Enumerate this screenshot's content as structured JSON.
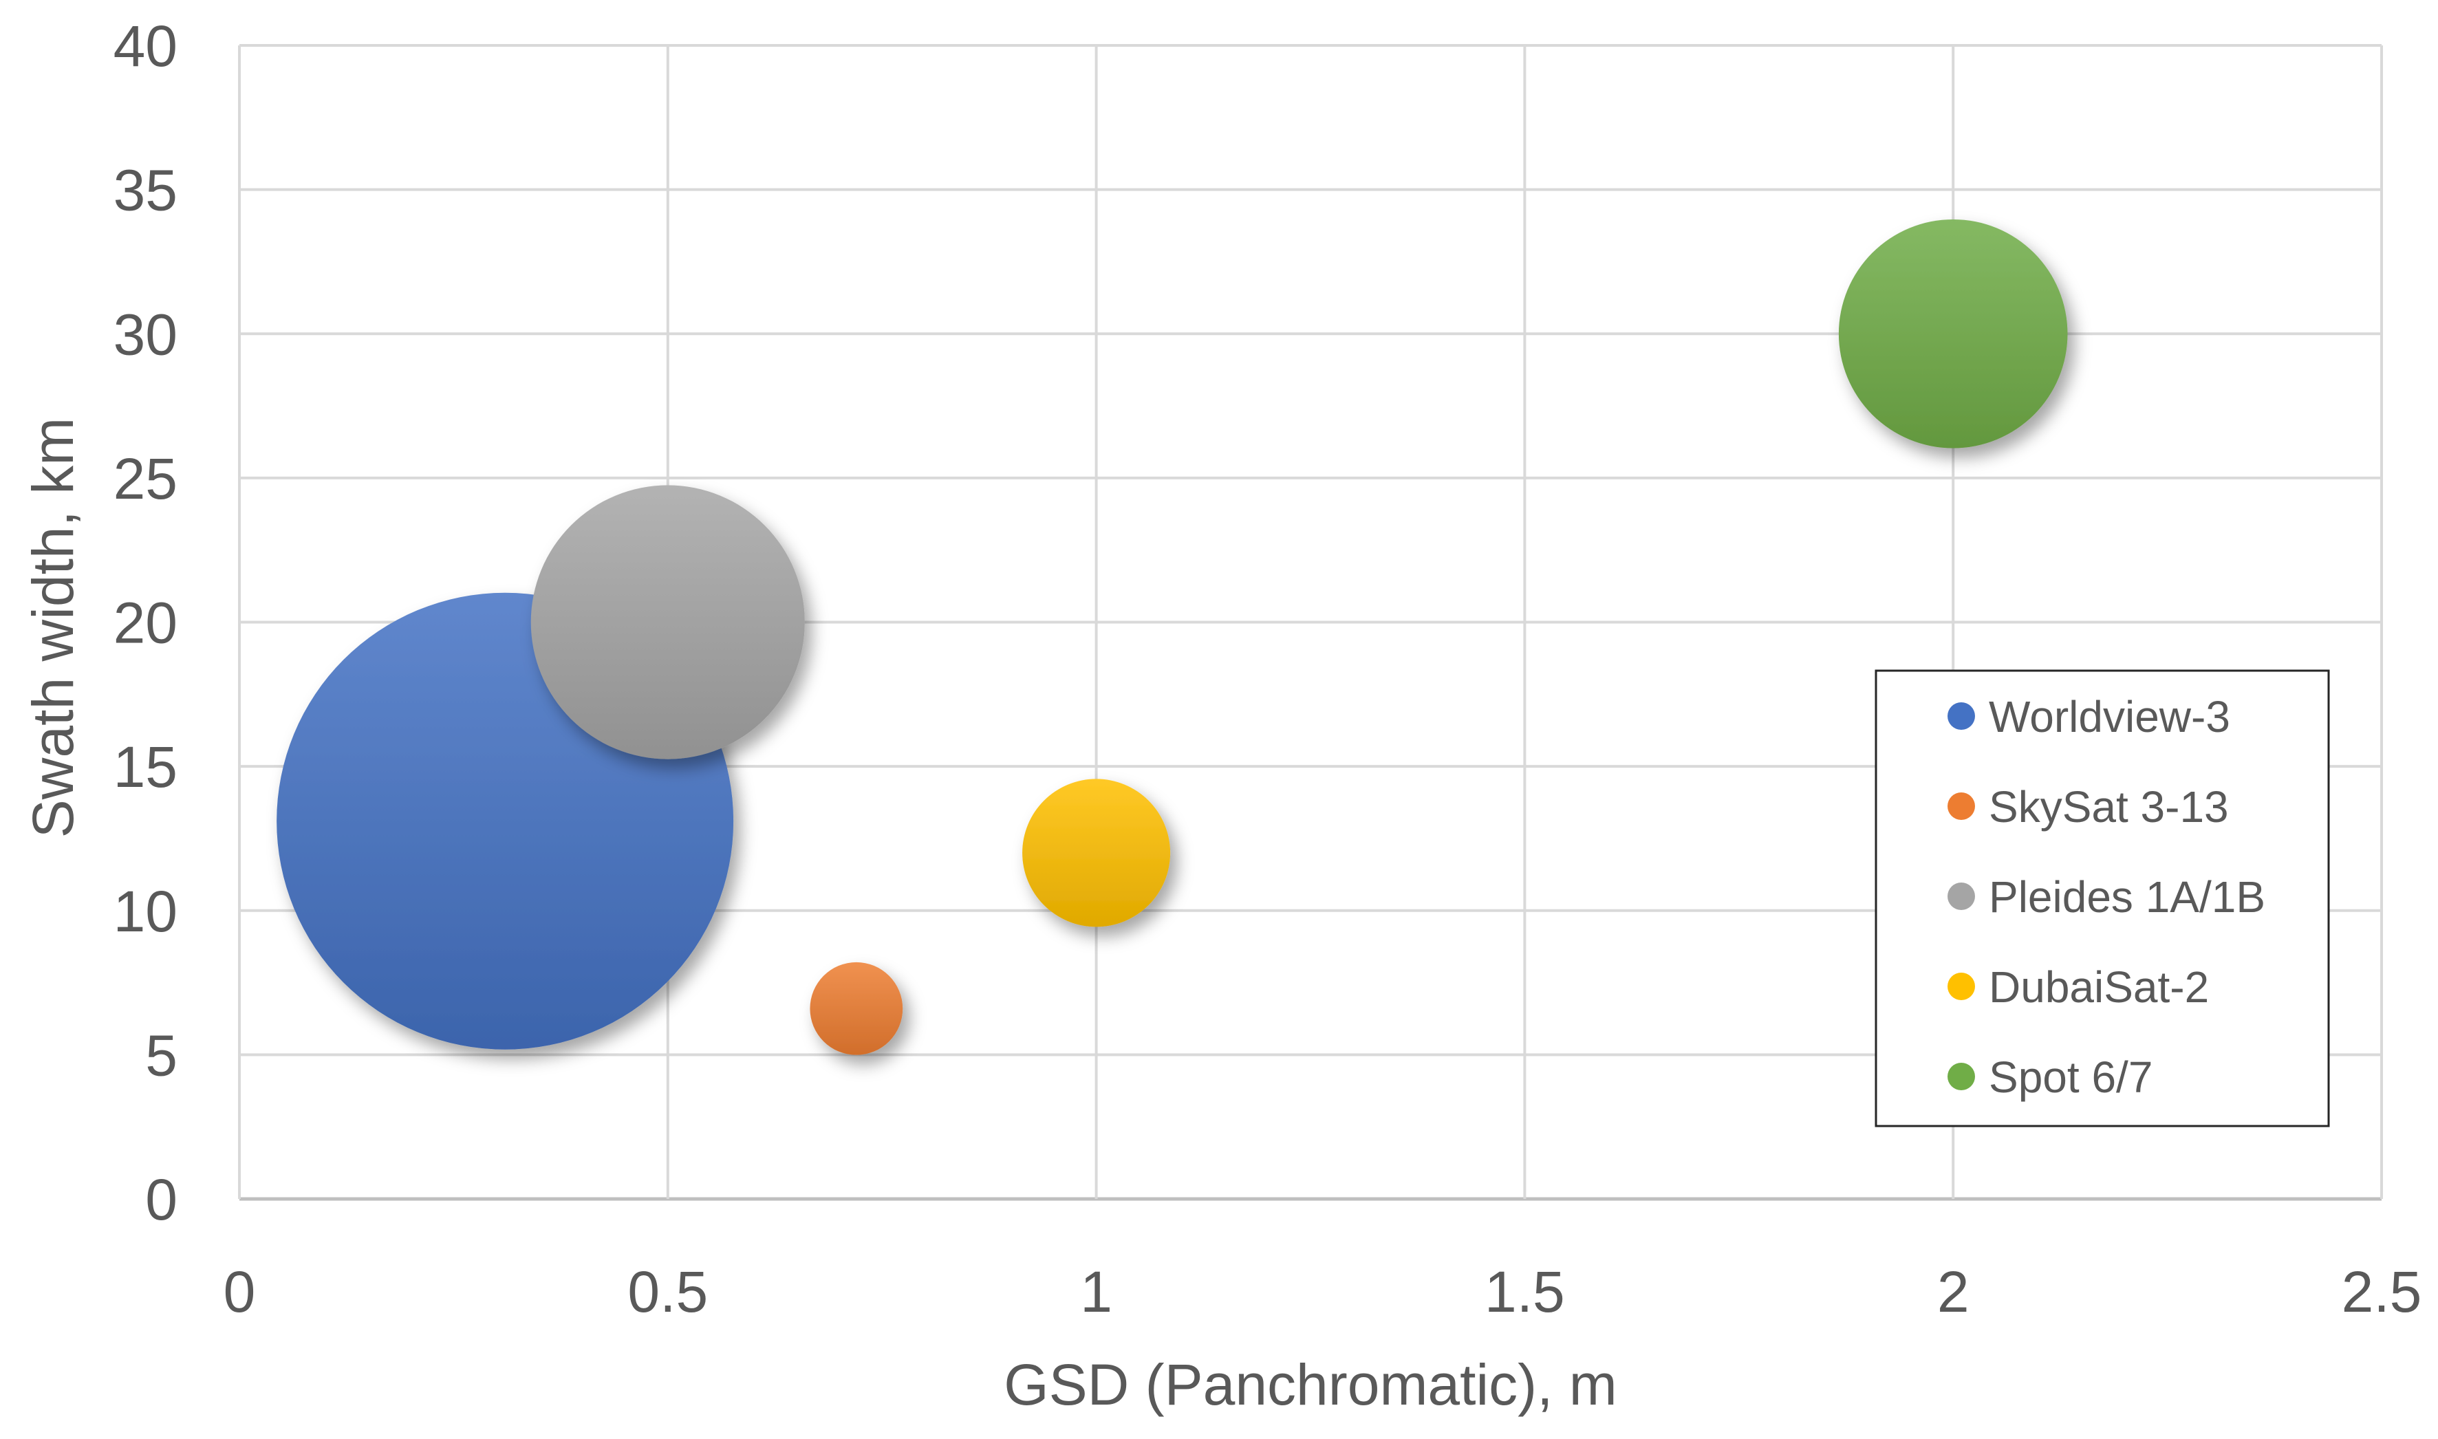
{
  "chart_data": {
    "type": "bubble",
    "title": "",
    "xlabel": "GSD (Panchromatic), m",
    "ylabel": "Swath width, km",
    "xlim": [
      0,
      2.5
    ],
    "ylim": [
      0,
      40
    ],
    "xticks": [
      "0",
      "0.5",
      "1",
      "1.5",
      "2",
      "2.5"
    ],
    "yticks": [
      "0",
      "5",
      "10",
      "15",
      "20",
      "25",
      "30",
      "35",
      "40"
    ],
    "xtick_values": [
      0,
      0.5,
      1,
      1.5,
      2,
      2.5
    ],
    "ytick_values": [
      0,
      5,
      10,
      15,
      20,
      25,
      30,
      35,
      40
    ],
    "grid": true,
    "legend_position": "right",
    "series": [
      {
        "name": "Worldview-3",
        "x": 0.31,
        "y": 13.1,
        "size": 26.7,
        "color": "#4472C4"
      },
      {
        "name": "SkySat 3-13",
        "x": 0.72,
        "y": 6.6,
        "size": 1.1,
        "color": "#ED7D31"
      },
      {
        "name": "Pleides 1A/1B",
        "x": 0.5,
        "y": 20,
        "size": 9.6,
        "color": "#A5A5A5"
      },
      {
        "name": "DubaiSat-2",
        "x": 1.0,
        "y": 12,
        "size": 2.8,
        "color": "#FFC000"
      },
      {
        "name": "Spot 6/7",
        "x": 2.0,
        "y": 30,
        "size": 6.7,
        "color": "#70AD47"
      }
    ]
  }
}
